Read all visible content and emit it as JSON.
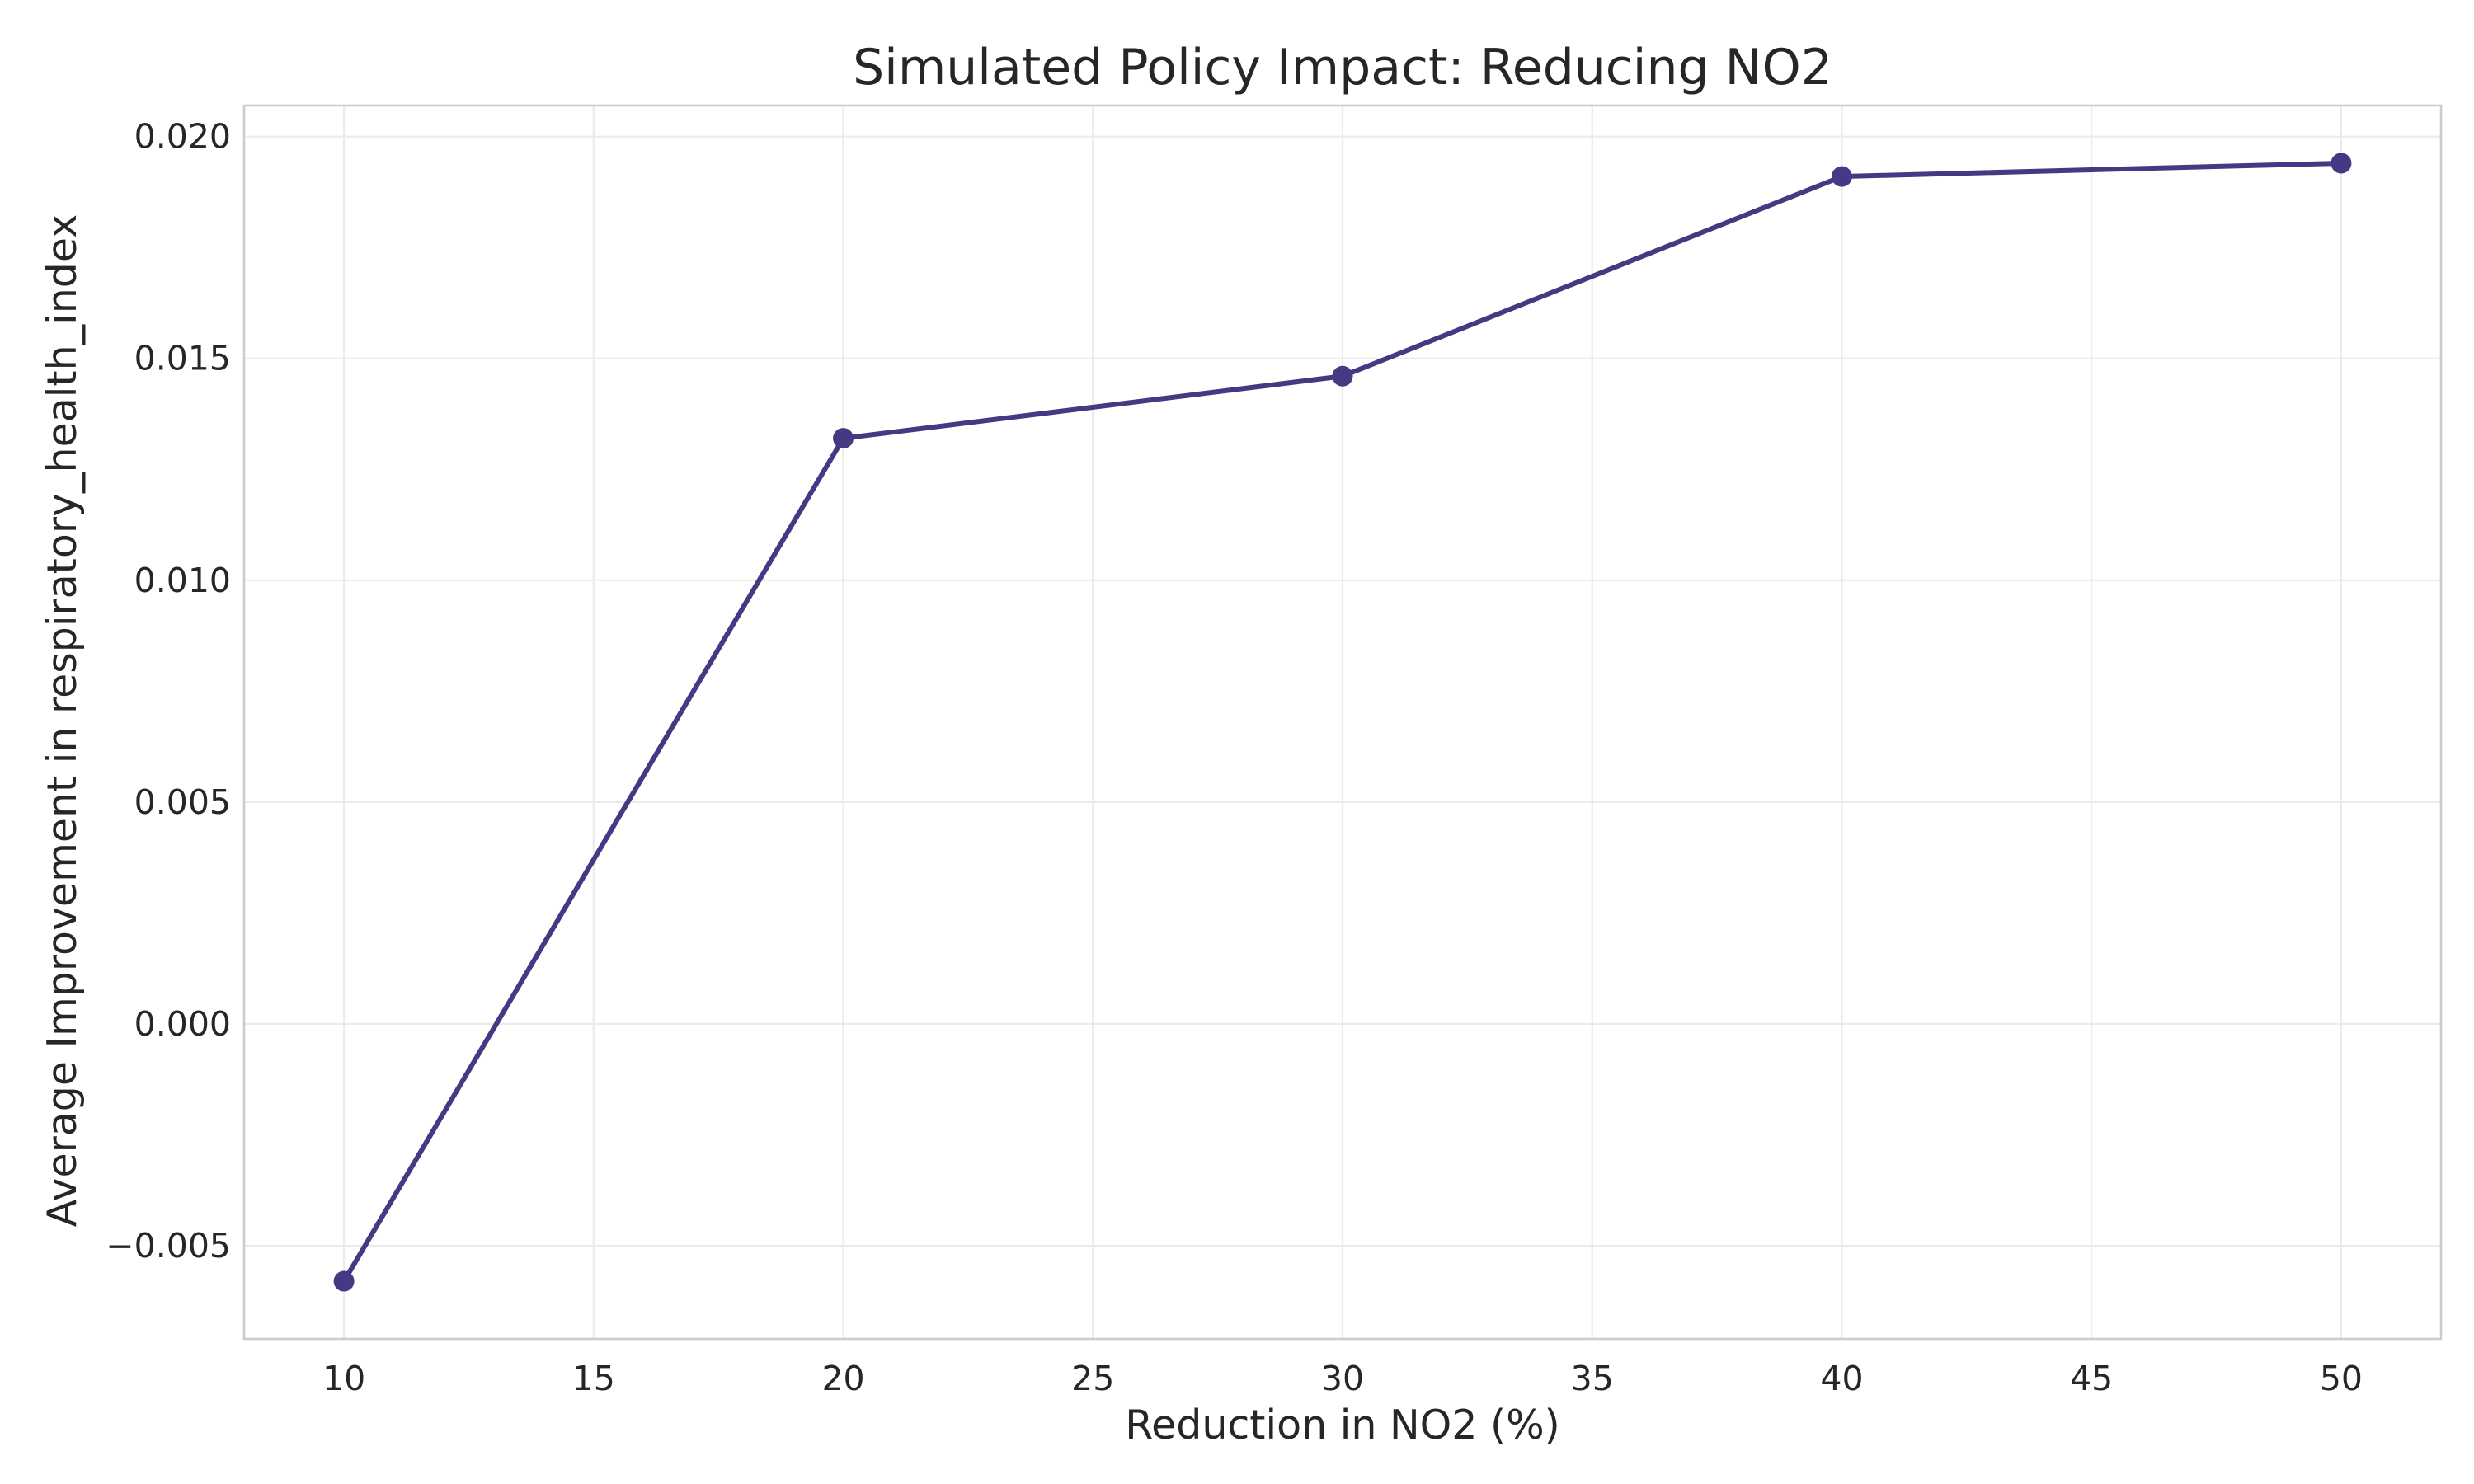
{
  "chart_data": {
    "type": "line",
    "title": "Simulated Policy Impact: Reducing NO2",
    "xlabel": "Reduction in NO2 (%)",
    "ylabel": "Average Improvement in respiratory_health_index",
    "x": [
      10,
      20,
      30,
      40,
      50
    ],
    "series": [
      {
        "values": [
          -0.0058,
          0.0132,
          0.0146,
          0.0191,
          0.0194
        ],
        "color": "#443983"
      }
    ],
    "xlim": [
      8,
      52
    ],
    "ylim": [
      -0.0071,
      0.0207
    ],
    "xticks": [
      10,
      15,
      20,
      25,
      30,
      35,
      40,
      45,
      50
    ],
    "xtick_labels": [
      "10",
      "15",
      "20",
      "25",
      "30",
      "35",
      "40",
      "45",
      "50"
    ],
    "yticks": [
      -0.005,
      0.0,
      0.005,
      0.01,
      0.015,
      0.02
    ],
    "ytick_labels": [
      "−0.005",
      "0.000",
      "0.005",
      "0.010",
      "0.015",
      "0.020"
    ],
    "grid": true,
    "legend": "none",
    "marker": "circle"
  }
}
